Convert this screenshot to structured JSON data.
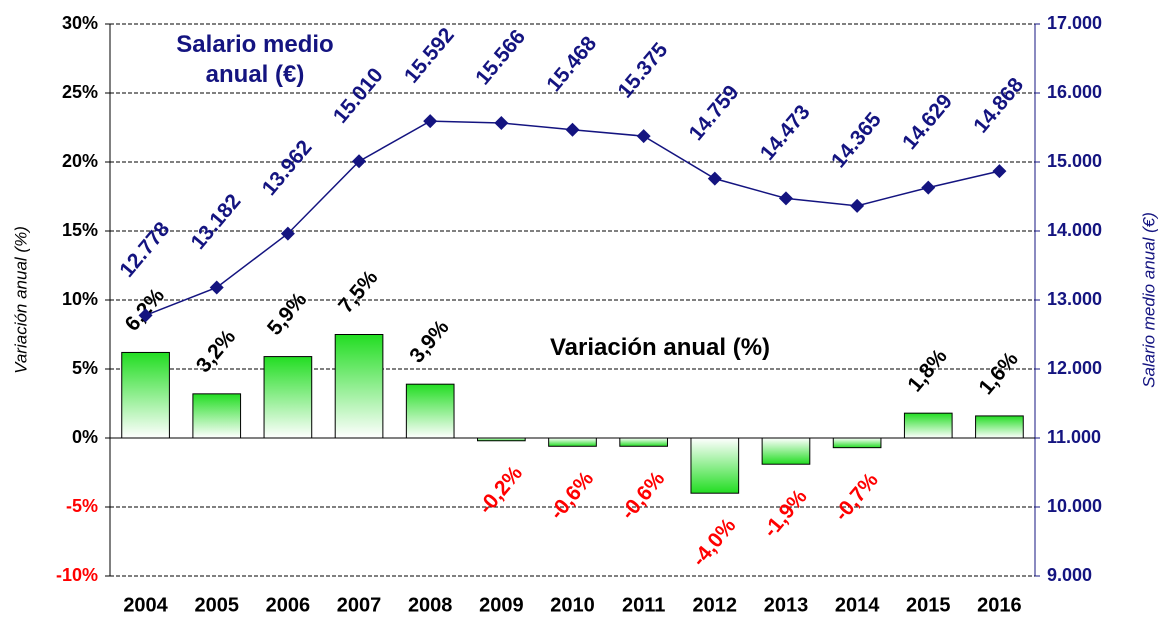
{
  "chart_data": {
    "type": "bar_line",
    "categories": [
      "2004",
      "2005",
      "2006",
      "2007",
      "2008",
      "2009",
      "2010",
      "2011",
      "2012",
      "2013",
      "2014",
      "2015",
      "2016"
    ],
    "series": [
      {
        "name": "Variación anual (%)",
        "type": "bar",
        "color": "#22dd22",
        "values": [
          6.2,
          3.2,
          5.9,
          7.5,
          3.9,
          -0.2,
          -0.6,
          -0.6,
          -4.0,
          -1.9,
          -0.7,
          1.8,
          1.6
        ],
        "value_labels": [
          "6,2%",
          "3,2%",
          "5,9%",
          "7,5%",
          "3,9%",
          "-0,2%",
          "-0,6%",
          "-0,6%",
          "-4,0%",
          "-1,9%",
          "-0,7%",
          "1,8%",
          "1,6%"
        ]
      },
      {
        "name": "Salario medio anual (€)",
        "type": "line",
        "axis": "y2",
        "color": "#141480",
        "values": [
          12778,
          13182,
          13962,
          15010,
          15592,
          15566,
          15468,
          15375,
          14759,
          14473,
          14365,
          14629,
          14868
        ],
        "value_labels": [
          "12.778",
          "13.182",
          "13.962",
          "15.010",
          "15.592",
          "15.566",
          "15.468",
          "15.375",
          "14.759",
          "14.473",
          "14.365",
          "14.629",
          "14.868"
        ]
      }
    ],
    "y_label": "Variación anual (%)",
    "y2_label": "Salario medio anual (€)",
    "ylim": [
      -10,
      30
    ],
    "yticks": [
      {
        "value": -10,
        "label": "-10%"
      },
      {
        "value": -5,
        "label": "-5%"
      },
      {
        "value": 0,
        "label": "0%"
      },
      {
        "value": 5,
        "label": "5%"
      },
      {
        "value": 10,
        "label": "10%"
      },
      {
        "value": 15,
        "label": "15%"
      },
      {
        "value": 20,
        "label": "20%"
      },
      {
        "value": 25,
        "label": "25%"
      },
      {
        "value": 30,
        "label": "30%"
      }
    ],
    "y2lim": [
      9000,
      17000
    ],
    "y2ticks": [
      {
        "value": 9000,
        "label": "9.000"
      },
      {
        "value": 10000,
        "label": "10.000"
      },
      {
        "value": 11000,
        "label": "11.000"
      },
      {
        "value": 12000,
        "label": "12.000"
      },
      {
        "value": 13000,
        "label": "13.000"
      },
      {
        "value": 14000,
        "label": "14.000"
      },
      {
        "value": 15000,
        "label": "15.000"
      },
      {
        "value": 16000,
        "label": "16.000"
      },
      {
        "value": 17000,
        "label": "17.000"
      }
    ],
    "grid": true
  }
}
